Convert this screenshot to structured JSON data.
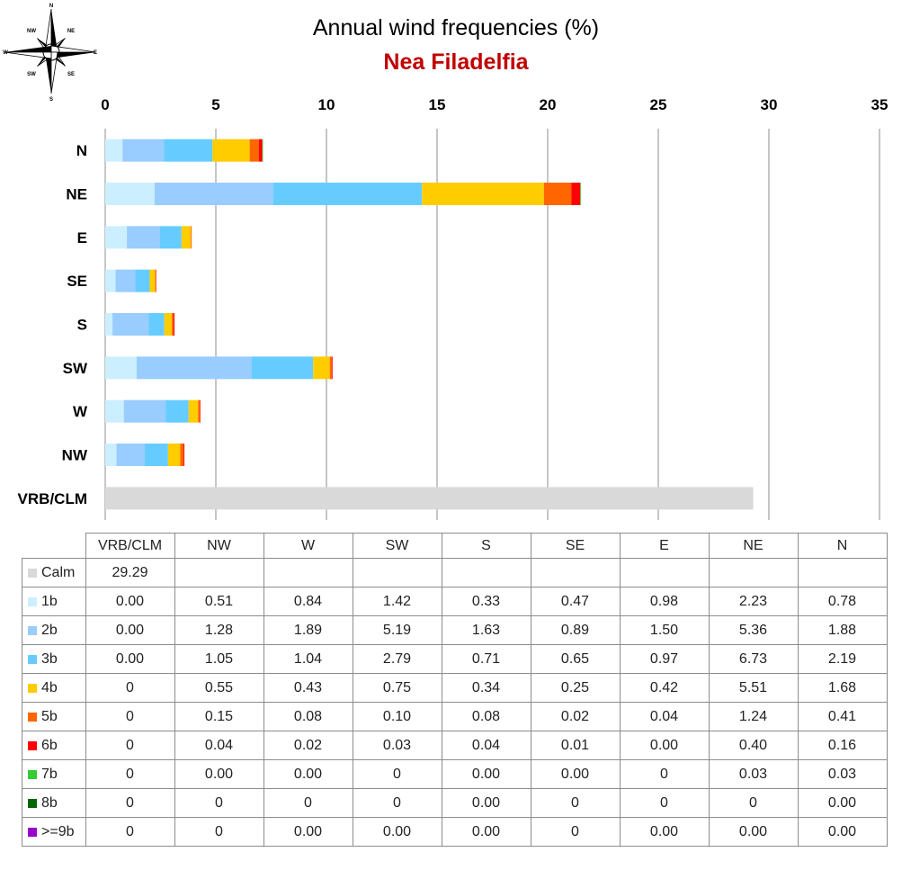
{
  "compass": {
    "labels": [
      "N",
      "NE",
      "E",
      "SE",
      "S",
      "SW",
      "W",
      "NW"
    ]
  },
  "chart_data": {
    "type": "bar",
    "orientation": "horizontal",
    "stacked": true,
    "title": "Annual wind frequencies (%)",
    "subtitle": "Nea Filadelfia",
    "xlim": [
      0,
      35
    ],
    "xticks": [
      "0",
      "5",
      "10",
      "15",
      "20",
      "25",
      "30",
      "35"
    ],
    "xaxis_position": "top",
    "grid": true,
    "legend_placement": "table-below",
    "categories": [
      "N",
      "NE",
      "E",
      "SE",
      "S",
      "SW",
      "W",
      "NW",
      "VRB/CLM"
    ],
    "table_columns": [
      "VRB/CLM",
      "NW",
      "W",
      "SW",
      "S",
      "SE",
      "E",
      "NE",
      "N"
    ],
    "series": [
      {
        "name": "Calm",
        "color": "#d9d9d9",
        "values": {
          "VRB/CLM": 29.29
        },
        "cells": [
          "29.29",
          "",
          "",
          "",
          "",
          "",
          "",
          "",
          ""
        ]
      },
      {
        "name": "1b",
        "color": "#ccefff",
        "values": {
          "VRB/CLM": 0.0,
          "NW": 0.51,
          "W": 0.84,
          "SW": 1.42,
          "S": 0.33,
          "SE": 0.47,
          "E": 0.98,
          "NE": 2.23,
          "N": 0.78
        },
        "cells": [
          "0.00",
          "0.51",
          "0.84",
          "1.42",
          "0.33",
          "0.47",
          "0.98",
          "2.23",
          "0.78"
        ]
      },
      {
        "name": "2b",
        "color": "#99ccff",
        "values": {
          "VRB/CLM": 0.0,
          "NW": 1.28,
          "W": 1.89,
          "SW": 5.19,
          "S": 1.63,
          "SE": 0.89,
          "E": 1.5,
          "NE": 5.36,
          "N": 1.88
        },
        "cells": [
          "0.00",
          "1.28",
          "1.89",
          "5.19",
          "1.63",
          "0.89",
          "1.50",
          "5.36",
          "1.88"
        ]
      },
      {
        "name": "3b",
        "color": "#66ccff",
        "values": {
          "VRB/CLM": 0.0,
          "NW": 1.05,
          "W": 1.04,
          "SW": 2.79,
          "S": 0.71,
          "SE": 0.65,
          "E": 0.97,
          "NE": 6.73,
          "N": 2.19
        },
        "cells": [
          "0.00",
          "1.05",
          "1.04",
          "2.79",
          "0.71",
          "0.65",
          "0.97",
          "6.73",
          "2.19"
        ]
      },
      {
        "name": "4b",
        "color": "#ffcc00",
        "values": {
          "VRB/CLM": 0,
          "NW": 0.55,
          "W": 0.43,
          "SW": 0.75,
          "S": 0.34,
          "SE": 0.25,
          "E": 0.42,
          "NE": 5.51,
          "N": 1.68
        },
        "cells": [
          "0",
          "0.55",
          "0.43",
          "0.75",
          "0.34",
          "0.25",
          "0.42",
          "5.51",
          "1.68"
        ]
      },
      {
        "name": "5b",
        "color": "#ff6600",
        "values": {
          "VRB/CLM": 0,
          "NW": 0.15,
          "W": 0.08,
          "SW": 0.1,
          "S": 0.08,
          "SE": 0.02,
          "E": 0.04,
          "NE": 1.24,
          "N": 0.41
        },
        "cells": [
          "0",
          "0.15",
          "0.08",
          "0.10",
          "0.08",
          "0.02",
          "0.04",
          "1.24",
          "0.41"
        ]
      },
      {
        "name": "6b",
        "color": "#ff0000",
        "values": {
          "VRB/CLM": 0,
          "NW": 0.04,
          "W": 0.02,
          "SW": 0.03,
          "S": 0.04,
          "SE": 0.01,
          "E": 0.0,
          "NE": 0.4,
          "N": 0.16
        },
        "cells": [
          "0",
          "0.04",
          "0.02",
          "0.03",
          "0.04",
          "0.01",
          "0.00",
          "0.40",
          "0.16"
        ]
      },
      {
        "name": "7b",
        "color": "#33cc33",
        "values": {
          "VRB/CLM": 0,
          "NW": 0.0,
          "W": 0.0,
          "SW": 0,
          "S": 0.0,
          "SE": 0.0,
          "E": 0,
          "NE": 0.03,
          "N": 0.03
        },
        "cells": [
          "0",
          "0.00",
          "0.00",
          "0",
          "0.00",
          "0.00",
          "0",
          "0.03",
          "0.03"
        ]
      },
      {
        "name": "8b",
        "color": "#006600",
        "values": {
          "VRB/CLM": 0,
          "NW": 0,
          "W": 0,
          "SW": 0,
          "S": 0.0,
          "SE": 0,
          "E": 0,
          "NE": 0,
          "N": 0.0
        },
        "cells": [
          "0",
          "0",
          "0",
          "0",
          "0.00",
          "0",
          "0",
          "0",
          "0.00"
        ]
      },
      {
        "name": ">=9b",
        "color": "#9900cc",
        "values": {
          "VRB/CLM": 0,
          "NW": 0,
          "W": 0.0,
          "SW": 0.0,
          "S": 0.0,
          "SE": 0,
          "E": 0.0,
          "NE": 0.0,
          "N": 0.0
        },
        "cells": [
          "0",
          "0",
          "0.00",
          "0.00",
          "0.00",
          "0",
          "0.00",
          "0.00",
          "0.00"
        ]
      }
    ]
  }
}
